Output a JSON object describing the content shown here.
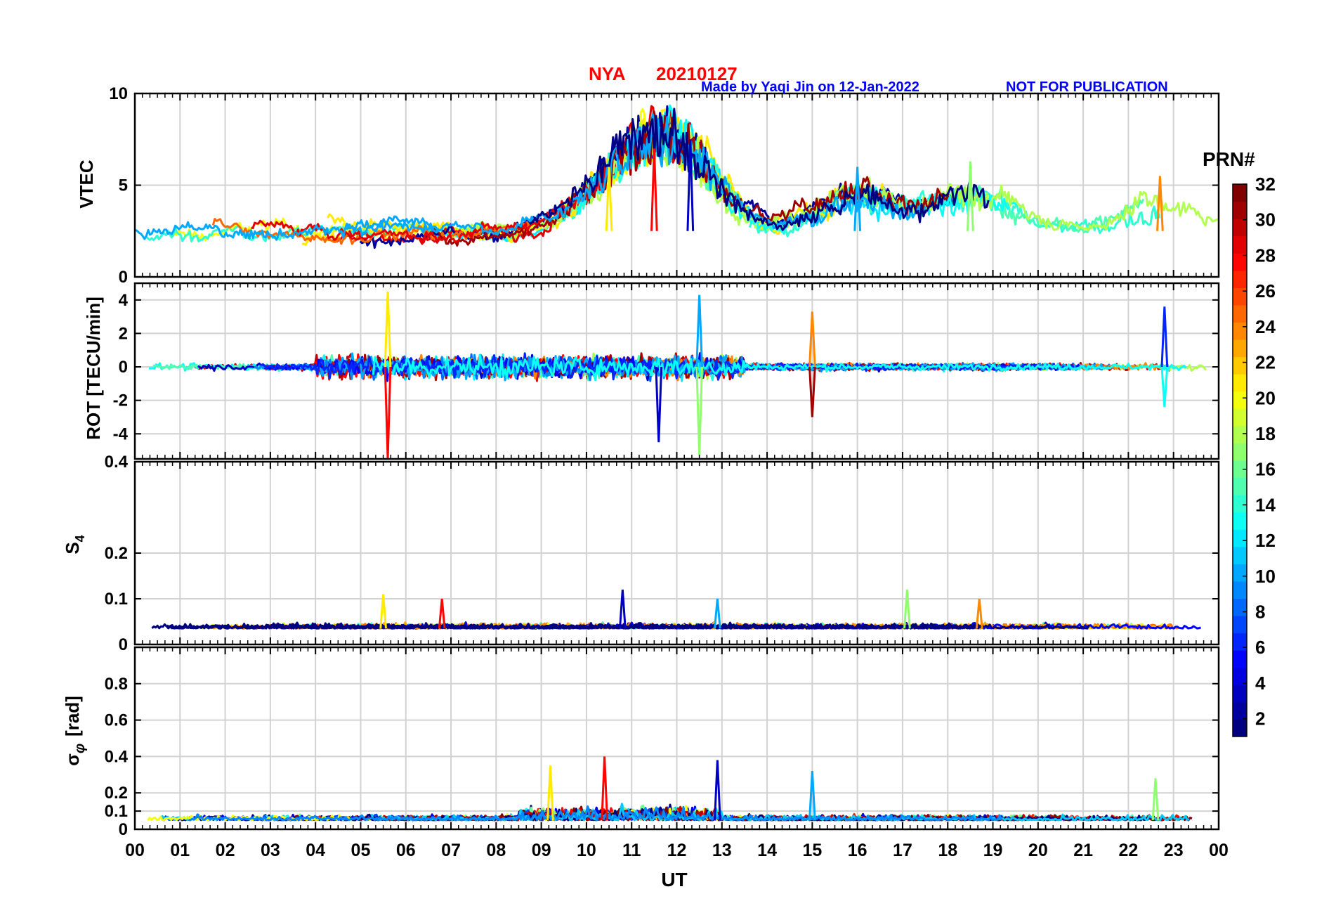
{
  "header": {
    "station": "NYA",
    "date": "20210127",
    "credit": "Made by Yaqi Jin on 12-Jan-2022",
    "notice": "NOT FOR PUBLICATION",
    "title_color": "#ff0000",
    "credit_color": "#0000ff"
  },
  "chart_data": [
    {
      "type": "line",
      "id": "vtec",
      "ylabel": "VTEC",
      "ylim": [
        0,
        10
      ],
      "yticks": [
        0,
        5,
        10
      ],
      "ytick_labels": [
        "0",
        "5",
        "10"
      ],
      "baseline": 2.5,
      "series_note": "one colored line per PRN 1-32",
      "peaks": [
        [
          10.5,
          6.0
        ],
        [
          11.5,
          7.0
        ],
        [
          12.3,
          7.5
        ],
        [
          16.0,
          6.0
        ],
        [
          18.5,
          6.3
        ],
        [
          22.7,
          5.5
        ]
      ]
    },
    {
      "type": "line",
      "id": "rot",
      "ylabel": "ROT [TECU/min]",
      "ylim": [
        -5.5,
        5
      ],
      "yticks": [
        -4,
        -2,
        0,
        2,
        4
      ],
      "ytick_labels": [
        "-4",
        "-2",
        "0",
        "2",
        "4"
      ],
      "spikes": [
        [
          5.6,
          4.5
        ],
        [
          5.6,
          -5.5
        ],
        [
          11.6,
          -4.5
        ],
        [
          12.5,
          4.3
        ],
        [
          12.5,
          -5.3
        ],
        [
          15.0,
          3.3
        ],
        [
          15.0,
          -3.0
        ],
        [
          22.8,
          3.6
        ],
        [
          22.8,
          -2.4
        ]
      ]
    },
    {
      "type": "line",
      "id": "s4",
      "ylabel": "S4",
      "ylim": [
        0,
        0.4
      ],
      "yticks": [
        0,
        0.1,
        0.2,
        0.4
      ],
      "ytick_labels": [
        "0",
        "0.1",
        "0.2",
        "0.4"
      ],
      "baseline": 0.035,
      "peaks": [
        [
          5.5,
          0.11
        ],
        [
          6.8,
          0.1
        ],
        [
          10.8,
          0.12
        ],
        [
          12.9,
          0.1
        ],
        [
          17.1,
          0.12
        ],
        [
          18.7,
          0.1
        ]
      ]
    },
    {
      "type": "line",
      "id": "sigma_phi",
      "ylabel": "σ",
      "ylabel_sub": "φ",
      "ylabel_unit": "[rad]",
      "ylim": [
        0,
        1
      ],
      "yticks": [
        0,
        0.1,
        0.2,
        0.4,
        0.6,
        0.8
      ],
      "ytick_labels": [
        "0",
        "0.1",
        "0.2",
        "0.4",
        "0.6",
        "0.8"
      ],
      "baseline": 0.05,
      "peaks": [
        [
          9.2,
          0.35
        ],
        [
          10.4,
          0.4
        ],
        [
          12.9,
          0.38
        ],
        [
          15.0,
          0.32
        ],
        [
          22.6,
          0.28
        ]
      ]
    }
  ],
  "x_axis": {
    "label": "UT",
    "range": [
      0,
      24
    ],
    "tick_labels": [
      "00",
      "01",
      "02",
      "03",
      "04",
      "05",
      "06",
      "07",
      "08",
      "09",
      "10",
      "11",
      "12",
      "13",
      "14",
      "15",
      "16",
      "17",
      "18",
      "19",
      "20",
      "21",
      "22",
      "23",
      "00"
    ]
  },
  "colorbar": {
    "title": "PRN#",
    "range": [
      1,
      32
    ],
    "tick_labels": [
      "2",
      "4",
      "6",
      "8",
      "10",
      "12",
      "14",
      "16",
      "18",
      "20",
      "22",
      "24",
      "26",
      "28",
      "30",
      "32"
    ],
    "colormap": "jet"
  }
}
